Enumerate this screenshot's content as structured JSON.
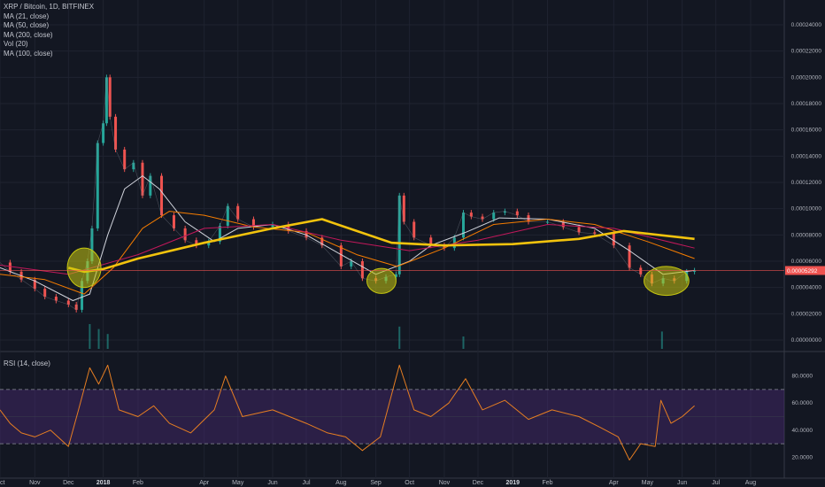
{
  "header": {
    "title": "XRP / Bitcoin, 1D, BITFINEX",
    "indicators": [
      "MA (21, close)",
      "MA (50, close)",
      "MA (200, close)",
      "Vol (20)",
      "MA (100, close)"
    ]
  },
  "rsi_panel": {
    "label": "RSI (14, close)"
  },
  "price_tag": "0.00005292",
  "colors": {
    "background": "#131722",
    "candle_up": "#26a69a",
    "candle_down": "#ef5350",
    "ma21": "#d1d4dc",
    "ma50": "#f57c00",
    "ma100": "#c2185b",
    "ma200": "#f2c30d",
    "highlight": "#c6c610",
    "rsi_line": "#e67e22",
    "rsi_band": "#4a2b73",
    "price_line": "#ef5350"
  },
  "chart_data": [
    {
      "type": "line",
      "title": "XRP / Bitcoin, 1D, BITFINEX",
      "x_ticks": [
        "Oct",
        "Nov",
        "Dec",
        "2018",
        "Feb",
        "Apr",
        "May",
        "Jun",
        "Jul",
        "Aug",
        "Sep",
        "Oct",
        "Nov",
        "Dec",
        "2019",
        "Feb",
        "Apr",
        "May",
        "Jun",
        "Jul",
        "Aug"
      ],
      "y_ticks": [
        "0.00000000",
        "0.00002000",
        "0.00004000",
        "0.00006000",
        "0.00008000",
        "0.00010000",
        "0.00012000",
        "0.00014000",
        "0.00016000",
        "0.00018000",
        "0.00020000",
        "0.00022000",
        "0.00024000"
      ],
      "ylim": [
        0,
        0.00024
      ],
      "last_price": 5.292e-05,
      "x_range": [
        "2017-10-01",
        "2019-08-31"
      ],
      "series": [
        {
          "name": "XRP / Bitcoin",
          "kind": "price",
          "points": [
            [
              "2017-10-01",
              5.9e-05
            ],
            [
              "2017-10-10",
              5.2e-05
            ],
            [
              "2017-10-20",
              4.6e-05
            ],
            [
              "2017-11-01",
              3.9e-05
            ],
            [
              "2017-11-10",
              3.3e-05
            ],
            [
              "2017-11-20",
              3e-05
            ],
            [
              "2017-12-01",
              2.7e-05
            ],
            [
              "2017-12-08",
              2.3e-05
            ],
            [
              "2017-12-13",
              4.5e-05
            ],
            [
              "2017-12-18",
              6e-05
            ],
            [
              "2017-12-22",
              8.5e-05
            ],
            [
              "2017-12-27",
              0.00015
            ],
            [
              "2018-01-01",
              0.000165
            ],
            [
              "2018-01-04",
              0.0002
            ],
            [
              "2018-01-07",
              0.00017
            ],
            [
              "2018-01-12",
              0.000145
            ],
            [
              "2018-01-20",
              0.00013
            ],
            [
              "2018-01-28",
              0.000135
            ],
            [
              "2018-02-05",
              0.00011
            ],
            [
              "2018-02-12",
              0.000125
            ],
            [
              "2018-02-22",
              9.5e-05
            ],
            [
              "2018-03-05",
              8.5e-05
            ],
            [
              "2018-03-15",
              7.6e-05
            ],
            [
              "2018-03-25",
              7.2e-05
            ],
            [
              "2018-04-05",
              7.5e-05
            ],
            [
              "2018-04-15",
              8.7e-05
            ],
            [
              "2018-04-22",
              0.000102
            ],
            [
              "2018-05-01",
              9.2e-05
            ],
            [
              "2018-05-15",
              8.6e-05
            ],
            [
              "2018-06-01",
              8.8e-05
            ],
            [
              "2018-06-15",
              8.3e-05
            ],
            [
              "2018-07-01",
              7.8e-05
            ],
            [
              "2018-07-15",
              7.2e-05
            ],
            [
              "2018-08-01",
              5.6e-05
            ],
            [
              "2018-08-10",
              6e-05
            ],
            [
              "2018-08-20",
              4.7e-05
            ],
            [
              "2018-09-01",
              4.5e-05
            ],
            [
              "2018-09-10",
              4.8e-05
            ],
            [
              "2018-09-19",
              5e-05
            ],
            [
              "2018-09-22",
              0.00011
            ],
            [
              "2018-09-26",
              9e-05
            ],
            [
              "2018-10-05",
              7.8e-05
            ],
            [
              "2018-10-20",
              7.2e-05
            ],
            [
              "2018-11-01",
              7e-05
            ],
            [
              "2018-11-10",
              7.8e-05
            ],
            [
              "2018-11-18",
              9.7e-05
            ],
            [
              "2018-11-25",
              9.4e-05
            ],
            [
              "2018-12-05",
              9.2e-05
            ],
            [
              "2018-12-15",
              9.7e-05
            ],
            [
              "2018-12-25",
              9.8e-05
            ],
            [
              "2019-01-05",
              9.5e-05
            ],
            [
              "2019-01-15",
              9e-05
            ],
            [
              "2019-02-01",
              9e-05
            ],
            [
              "2019-02-15",
              8.6e-05
            ],
            [
              "2019-03-01",
              8.2e-05
            ],
            [
              "2019-03-15",
              8.1e-05
            ],
            [
              "2019-04-01",
              7.2e-05
            ],
            [
              "2019-04-15",
              5.5e-05
            ],
            [
              "2019-04-25",
              5e-05
            ],
            [
              "2019-05-05",
              4.3e-05
            ],
            [
              "2019-05-15",
              4.7e-05
            ],
            [
              "2019-05-25",
              4.5e-05
            ],
            [
              "2019-06-05",
              5.2e-05
            ],
            [
              "2019-06-12",
              5.29e-05
            ]
          ]
        },
        {
          "name": "MA (21, close)",
          "kind": "ma",
          "points": [
            [
              "2017-10-01",
              5.5e-05
            ],
            [
              "2017-11-01",
              4.5e-05
            ],
            [
              "2017-12-05",
              3e-05
            ],
            [
              "2017-12-20",
              3.5e-05
            ],
            [
              "2018-01-05",
              8e-05
            ],
            [
              "2018-01-20",
              0.000115
            ],
            [
              "2018-02-05",
              0.000125
            ],
            [
              "2018-02-20",
              0.000115
            ],
            [
              "2018-03-15",
              9e-05
            ],
            [
              "2018-04-10",
              7.5e-05
            ],
            [
              "2018-05-01",
              8.5e-05
            ],
            [
              "2018-06-01",
              8.8e-05
            ],
            [
              "2018-07-01",
              8e-05
            ],
            [
              "2018-08-01",
              6.5e-05
            ],
            [
              "2018-09-01",
              5e-05
            ],
            [
              "2018-10-01",
              6e-05
            ],
            [
              "2018-10-20",
              7.2e-05
            ],
            [
              "2018-11-20",
              8.2e-05
            ],
            [
              "2018-12-20",
              9.3e-05
            ],
            [
              "2019-02-01",
              9.2e-05
            ],
            [
              "2019-03-15",
              8.5e-05
            ],
            [
              "2019-04-15",
              6.8e-05
            ],
            [
              "2019-05-15",
              5e-05
            ],
            [
              "2019-06-12",
              5.3e-05
            ]
          ]
        },
        {
          "name": "MA (50, close)",
          "kind": "ma",
          "points": [
            [
              "2017-10-01",
              5e-05
            ],
            [
              "2017-11-10",
              4.6e-05
            ],
            [
              "2017-12-15",
              3.5e-05
            ],
            [
              "2018-01-10",
              5.5e-05
            ],
            [
              "2018-02-05",
              8.5e-05
            ],
            [
              "2018-03-01",
              9.8e-05
            ],
            [
              "2018-04-01",
              9.5e-05
            ],
            [
              "2018-05-15",
              8.6e-05
            ],
            [
              "2018-07-01",
              8.2e-05
            ],
            [
              "2018-08-15",
              6.5e-05
            ],
            [
              "2018-09-20",
              5.6e-05
            ],
            [
              "2018-11-01",
              7e-05
            ],
            [
              "2018-12-15",
              8.8e-05
            ],
            [
              "2019-02-01",
              9.2e-05
            ],
            [
              "2019-03-15",
              8.8e-05
            ],
            [
              "2019-05-01",
              7.5e-05
            ],
            [
              "2019-06-12",
              6.2e-05
            ]
          ]
        },
        {
          "name": "MA (100, close)",
          "kind": "ma",
          "points": [
            [
              "2017-10-01",
              5.7e-05
            ],
            [
              "2017-12-01",
              5e-05
            ],
            [
              "2018-02-01",
              6.5e-05
            ],
            [
              "2018-04-01",
              8.5e-05
            ],
            [
              "2018-06-01",
              8.8e-05
            ],
            [
              "2018-08-01",
              7.6e-05
            ],
            [
              "2018-10-01",
              6.8e-05
            ],
            [
              "2018-12-01",
              7.6e-05
            ],
            [
              "2019-02-01",
              8.8e-05
            ],
            [
              "2019-04-01",
              8.5e-05
            ],
            [
              "2019-06-12",
              7e-05
            ]
          ]
        },
        {
          "name": "MA (200, close)",
          "kind": "ma",
          "points": [
            [
              "2017-12-01",
              5.5e-05
            ],
            [
              "2017-12-15",
              5.2e-05
            ],
            [
              "2018-01-01",
              5.4e-05
            ],
            [
              "2018-02-01",
              6.2e-05
            ],
            [
              "2018-04-01",
              7.4e-05
            ],
            [
              "2018-06-01",
              8.5e-05
            ],
            [
              "2018-07-15",
              9.2e-05
            ],
            [
              "2018-08-15",
              8.3e-05
            ],
            [
              "2018-09-15",
              7.4e-05
            ],
            [
              "2018-11-01",
              7.2e-05
            ],
            [
              "2019-01-01",
              7.3e-05
            ],
            [
              "2019-03-01",
              7.7e-05
            ],
            [
              "2019-04-10",
              8.3e-05
            ],
            [
              "2019-06-12",
              7.7e-05
            ]
          ]
        }
      ],
      "highlights": [
        {
          "center": [
            "2017-12-15",
            5.5e-05
          ],
          "span_days": 30,
          "span_value": 3e-05
        },
        {
          "center": [
            "2018-09-06",
            4.5e-05
          ],
          "span_days": 26,
          "span_value": 1.9e-05
        },
        {
          "center": [
            "2019-05-18",
            4.5e-05
          ],
          "span_days": 40,
          "span_value": 2.2e-05
        }
      ],
      "volume_spikes": [
        [
          "2017-12-20",
          1.0
        ],
        [
          "2017-12-28",
          0.8
        ],
        [
          "2018-01-05",
          0.6
        ],
        [
          "2018-09-22",
          0.9
        ],
        [
          "2018-11-18",
          0.5
        ],
        [
          "2019-05-14",
          0.7
        ]
      ]
    },
    {
      "type": "line",
      "title": "RSI (14, close)",
      "y_ticks": [
        "20.0000",
        "40.0000",
        "60.0000",
        "80.0000"
      ],
      "ylim": [
        0,
        100
      ],
      "band": [
        30,
        70
      ],
      "series": [
        {
          "name": "RSI (14, close)",
          "points": [
            [
              "2017-10-01",
              55
            ],
            [
              "2017-10-10",
              45
            ],
            [
              "2017-10-20",
              38
            ],
            [
              "2017-11-01",
              35
            ],
            [
              "2017-11-15",
              40
            ],
            [
              "2017-12-01",
              28
            ],
            [
              "2017-12-10",
              55
            ],
            [
              "2017-12-20",
              86
            ],
            [
              "2017-12-28",
              74
            ],
            [
              "2018-01-05",
              88
            ],
            [
              "2018-01-15",
              55
            ],
            [
              "2018-02-01",
              50
            ],
            [
              "2018-02-15",
              58
            ],
            [
              "2018-03-01",
              45
            ],
            [
              "2018-03-20",
              38
            ],
            [
              "2018-04-10",
              55
            ],
            [
              "2018-04-20",
              80
            ],
            [
              "2018-05-05",
              50
            ],
            [
              "2018-06-01",
              55
            ],
            [
              "2018-07-01",
              45
            ],
            [
              "2018-07-20",
              38
            ],
            [
              "2018-08-05",
              35
            ],
            [
              "2018-08-20",
              25
            ],
            [
              "2018-09-05",
              35
            ],
            [
              "2018-09-22",
              88
            ],
            [
              "2018-10-05",
              55
            ],
            [
              "2018-10-20",
              50
            ],
            [
              "2018-11-05",
              60
            ],
            [
              "2018-11-20",
              78
            ],
            [
              "2018-12-05",
              55
            ],
            [
              "2018-12-25",
              62
            ],
            [
              "2019-01-15",
              48
            ],
            [
              "2019-02-05",
              55
            ],
            [
              "2019-03-01",
              50
            ],
            [
              "2019-03-20",
              42
            ],
            [
              "2019-04-05",
              35
            ],
            [
              "2019-04-15",
              18
            ],
            [
              "2019-04-25",
              30
            ],
            [
              "2019-05-08",
              28
            ],
            [
              "2019-05-13",
              62
            ],
            [
              "2019-05-22",
              45
            ],
            [
              "2019-06-01",
              50
            ],
            [
              "2019-06-12",
              58
            ]
          ]
        }
      ]
    }
  ]
}
